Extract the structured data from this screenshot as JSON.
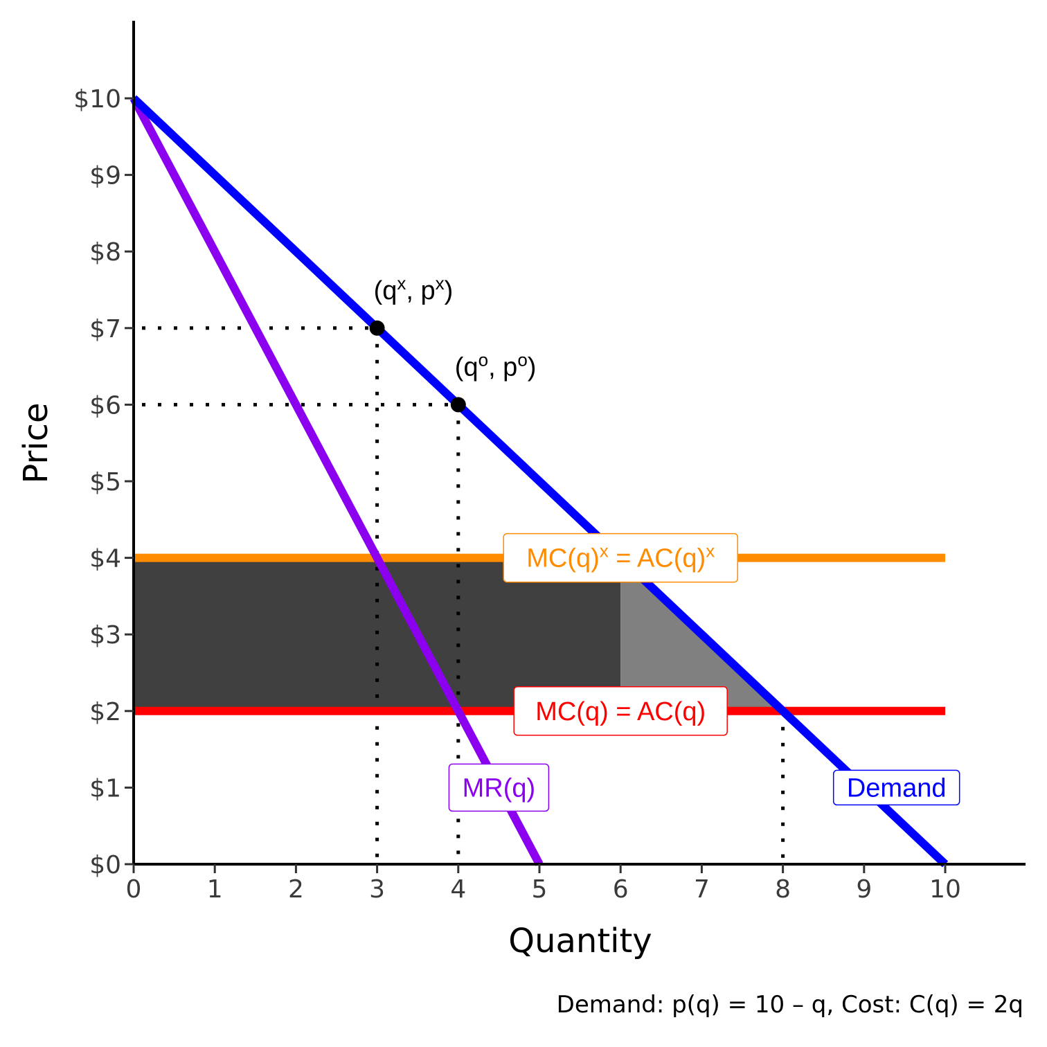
{
  "chart_data": {
    "type": "line",
    "xlabel": "Quantity",
    "ylabel": "Price",
    "caption": "Demand: p(q) = 10 – q, Cost: C(q) = 2q",
    "xlim": [
      0,
      11
    ],
    "ylim": [
      0,
      11
    ],
    "x_ticks": [
      "0",
      "1",
      "2",
      "3",
      "4",
      "5",
      "6",
      "7",
      "8",
      "9",
      "10"
    ],
    "y_ticks": [
      "$0",
      "$1",
      "$2",
      "$3",
      "$4",
      "$5",
      "$6",
      "$7",
      "$8",
      "$9",
      "$10"
    ],
    "grid": false,
    "series": [
      {
        "name": "Demand",
        "color": "#0000FF",
        "x": [
          0,
          10
        ],
        "y": [
          10,
          0
        ]
      },
      {
        "name": "MR(q)",
        "color": "#8B00EE",
        "x": [
          0,
          5
        ],
        "y": [
          10,
          0
        ]
      },
      {
        "name": "MC(q)x = AC(q)x",
        "color": "#FF8C00",
        "x": [
          0,
          10
        ],
        "y": [
          4,
          4
        ]
      },
      {
        "name": "MC(q) = AC(q)",
        "color": "#FF0000",
        "x": [
          0,
          10
        ],
        "y": [
          2,
          2
        ]
      }
    ],
    "labels": {
      "demand": "Demand",
      "mr": "MR(q)",
      "mc": "MC(q) = AC(q)",
      "mcx_left": "MC(q)",
      "mcx_mid": " = AC(q)",
      "mcx_sup": "x"
    },
    "points": [
      {
        "q": 3,
        "p": 7,
        "label_open": "(q",
        "label_sup1": "x",
        "label_mid": ", p",
        "label_sup2": "x",
        "label_close": ")"
      },
      {
        "q": 4,
        "p": 6,
        "label_open": "(q",
        "label_sup1": "o",
        "label_mid": ", p",
        "label_sup2": "o",
        "label_close": ")"
      }
    ],
    "shaded": [
      {
        "name": "rectangle",
        "color": "#404040",
        "q": [
          0,
          6
        ],
        "p": [
          2,
          4
        ]
      },
      {
        "name": "triangle",
        "color": "#808080",
        "q": [
          6,
          8
        ],
        "p": [
          2,
          4
        ]
      }
    ]
  }
}
